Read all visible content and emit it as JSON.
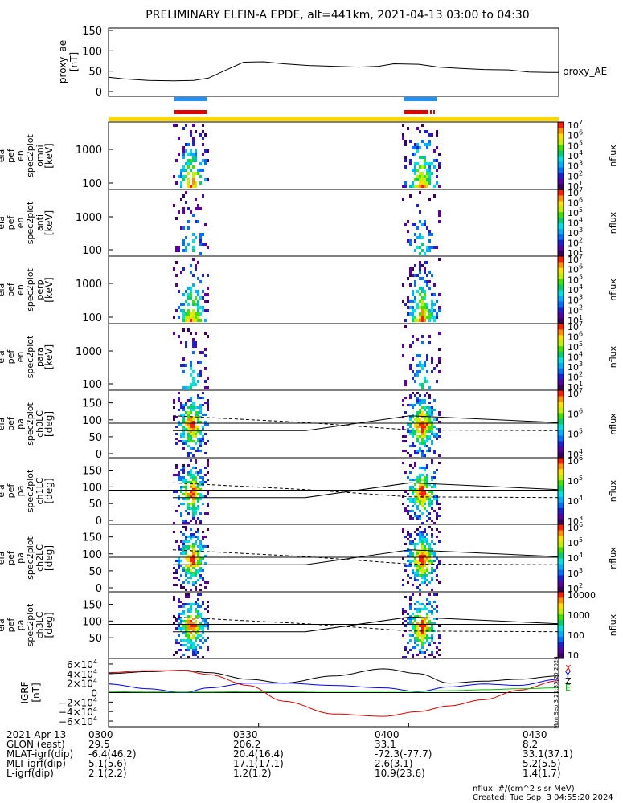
{
  "title": "PRELIMINARY ELFIN-A EPDE, alt=441km, 2021-04-13 03:00 to 04:30",
  "colors": {
    "bar_blue": "#1e90ff",
    "bar_red": "#e00000",
    "bar_yellow": "#ffd700",
    "bx": "#000000",
    "by": "#0000ff",
    "bz": "#e00000",
    "green_line": "#00c000"
  },
  "chart_data": [
    {
      "type": "line",
      "panel": "proxy_ae",
      "ylabel": [
        "proxy_ae",
        "[nT]"
      ],
      "legend": "proxy_AE",
      "ylim": [
        0,
        150
      ],
      "yticks": [
        "0",
        "50",
        "100",
        "150"
      ],
      "x_minutes": [
        0,
        3,
        8,
        13,
        17,
        20,
        23,
        27,
        31,
        35,
        40,
        45,
        50,
        54,
        57,
        62,
        66,
        70,
        75,
        80,
        84,
        88,
        90
      ],
      "values": [
        35,
        31,
        27,
        26,
        27,
        33,
        50,
        72,
        73,
        68,
        64,
        62,
        60,
        62,
        68,
        67,
        60,
        57,
        54,
        53,
        48,
        47,
        47
      ]
    },
    {
      "type": "heatmap",
      "panels": [
        {
          "name": "ela pef en spec2plot omni",
          "ylabel": [
            "ela",
            "pef",
            "en",
            "spec2plot",
            "omni",
            "[keV]"
          ],
          "yticks": [
            "100",
            "1000"
          ]
        },
        {
          "name": "ela pef en spec2plot anti",
          "ylabel": [
            "ela",
            "pef",
            "en",
            "spec2plot",
            "anti",
            "[keV]"
          ],
          "yticks": [
            "100",
            "1000"
          ]
        },
        {
          "name": "ela pef en spec2plot perp",
          "ylabel": [
            "ela",
            "pef",
            "en",
            "spec2plot",
            "perp",
            "[keV]"
          ],
          "yticks": [
            "100",
            "1000"
          ]
        },
        {
          "name": "ela pef en spec2plot para",
          "ylabel": [
            "ela",
            "pef",
            "en",
            "spec2plot",
            "para",
            "[keV]"
          ],
          "yticks": [
            "100",
            "1000"
          ]
        },
        {
          "name": "ela pef pa spec2plot ch0LC",
          "ylabel": [
            "ela",
            "pef",
            "pa",
            "spec2plot",
            "ch0LC",
            "[deg]"
          ],
          "yticks": [
            "0",
            "50",
            "100",
            "150"
          ]
        },
        {
          "name": "ela pef pa spec2plot ch1LC",
          "ylabel": [
            "ela",
            "pef",
            "pa",
            "spec2plot",
            "ch1LC",
            "[deg]"
          ],
          "yticks": [
            "0",
            "50",
            "100",
            "150"
          ]
        },
        {
          "name": "ela pef pa spec2plot ch2LC",
          "ylabel": [
            "ela",
            "pef",
            "pa",
            "spec2plot",
            "ch2LC",
            "[deg]"
          ],
          "yticks": [
            "0",
            "50",
            "100",
            "150"
          ]
        },
        {
          "name": "ela pef pa spec2plot ch3LC",
          "ylabel": [
            "ela",
            "pef",
            "pa",
            "spec2plot",
            "ch3LC",
            "[deg]"
          ],
          "yticks": [
            "50",
            "100",
            "150"
          ]
        }
      ],
      "colorbars": [
        {
          "label": "nflux",
          "ticks": [
            "10",
            "10",
            "10",
            "10",
            "10",
            "10",
            "10"
          ],
          "exps": [
            "1",
            "2",
            "3",
            "4",
            "5",
            "6",
            "7"
          ]
        },
        {
          "label": "nflux",
          "ticks": [
            "10",
            "10",
            "10",
            "10",
            "10",
            "10",
            "10"
          ],
          "exps": [
            "1",
            "2",
            "3",
            "4",
            "5",
            "6",
            "7"
          ]
        },
        {
          "label": "nflux",
          "ticks": [
            "10",
            "10",
            "10",
            "10",
            "10",
            "10",
            "10"
          ],
          "exps": [
            "1",
            "2",
            "3",
            "4",
            "5",
            "6",
            "7"
          ]
        },
        {
          "label": "nflux",
          "ticks": [
            "10",
            "10",
            "10",
            "10",
            "10",
            "10",
            "10"
          ],
          "exps": [
            "1",
            "2",
            "3",
            "4",
            "5",
            "6",
            "7"
          ]
        },
        {
          "label": "nflux",
          "ticks": [
            "10",
            "10",
            "10",
            "10"
          ],
          "exps": [
            "4",
            "5",
            "6",
            "7"
          ]
        },
        {
          "label": "nflux",
          "ticks": [
            "10",
            "10",
            "10",
            "10"
          ],
          "exps": [
            "3",
            "4",
            "5",
            "6"
          ]
        },
        {
          "label": "nflux",
          "ticks": [
            "10",
            "10",
            "10",
            "10",
            "10"
          ],
          "exps": [
            "2",
            "3",
            "4",
            "5",
            "6"
          ]
        },
        {
          "label": "nflux",
          "ticks": [
            "10",
            "100",
            "1000",
            "10000"
          ],
          "exps": [
            "",
            "",
            "",
            ""
          ]
        }
      ]
    },
    {
      "type": "line",
      "panel": "IGRF",
      "ylabel": [
        "IGRF",
        "[nT]"
      ],
      "yticks": [
        "−6×10",
        "−4×10",
        "−2×10",
        "0",
        "2×10",
        "4×10",
        "6×10"
      ],
      "ytick_exp": "4",
      "ylim": [
        -65000,
        65000
      ],
      "legend": [
        "X",
        "Y",
        "Z",
        "E"
      ],
      "x_minutes": [
        0,
        8,
        15,
        20,
        28,
        35,
        45,
        55,
        62,
        68,
        75,
        82,
        90
      ],
      "series": [
        {
          "name": "X",
          "values": [
            40000,
            44000,
            47000,
            42000,
            28000,
            20000,
            35000,
            50000,
            40000,
            20000,
            24000,
            28000,
            35000
          ]
        },
        {
          "name": "Y",
          "values": [
            18000,
            8000,
            0,
            10000,
            20000,
            20000,
            15000,
            10000,
            2000,
            12000,
            18000,
            15000,
            28000
          ]
        },
        {
          "name": "Z",
          "values": [
            42000,
            46000,
            46000,
            38000,
            15000,
            -18000,
            -45000,
            -50000,
            -40000,
            -28000,
            -15000,
            5000,
            25000
          ]
        },
        {
          "name": "E",
          "values": [
            2000,
            1000,
            1000,
            1000,
            2000,
            2000,
            3000,
            3000,
            3000,
            4000,
            6000,
            8000,
            10000
          ]
        }
      ],
      "side_text": "Mon Sep  3 21:35:20 2024"
    }
  ],
  "footer": {
    "rows": [
      [
        "2021 Apr 13",
        "0300",
        "0330",
        "0400",
        "0430"
      ],
      [
        "GLON (east)",
        "29.5",
        "206.2",
        "33.1",
        "8.2"
      ],
      [
        "MLAT-igrf(dip)",
        "-6.4(46.2)",
        "20.4(16.4)",
        "-72.3(-77.7)",
        "33.1(37.1)"
      ],
      [
        "MLT-igrf(dip)",
        "5.1(5.6)",
        "17.1(17.1)",
        "2.6(3.1)",
        "5.2(5.5)"
      ],
      [
        "L-igrf(dip)",
        "2.1(2.2)",
        "1.2(1.2)",
        "10.9(23.6)",
        "1.4(1.7)"
      ]
    ],
    "units_note": "nflux: #/(cm^2 s sr MeV)",
    "created": "Created: Tue Sep  3 04:55:20 2024"
  }
}
